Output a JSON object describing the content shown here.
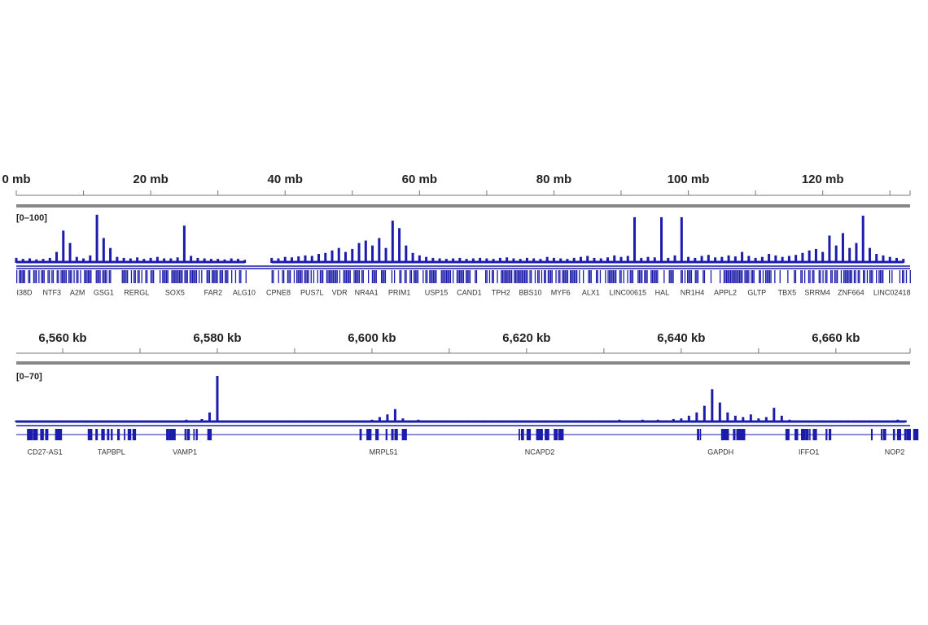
{
  "chart_data": [
    {
      "type": "genome-track",
      "xlim": [
        0,
        133
      ],
      "xticks": [
        {
          "value": 0,
          "label": "0 mb"
        },
        {
          "value": 20,
          "label": "20 mb"
        },
        {
          "value": 40,
          "label": "40 mb"
        },
        {
          "value": 60,
          "label": "60 mb"
        },
        {
          "value": 80,
          "label": "80 mb"
        },
        {
          "value": 100,
          "label": "100 mb"
        },
        {
          "value": 120,
          "label": "120 mb"
        }
      ],
      "minor_xticks": [
        10,
        30,
        50,
        70,
        90,
        110,
        130
      ],
      "range_label": "[0–100]",
      "ylim": [
        0,
        100
      ],
      "color": "#1c1cab",
      "series": [
        {
          "x": [
            0,
            1,
            2,
            3,
            4,
            5,
            6,
            7,
            8,
            9,
            10,
            11,
            12,
            13,
            14,
            15,
            16,
            17,
            18,
            19,
            20,
            21,
            22,
            23,
            24,
            25,
            26,
            27,
            28,
            29,
            30,
            31,
            32,
            33,
            34,
            35,
            36,
            37,
            38,
            39,
            40,
            41,
            42,
            43,
            44,
            45,
            46,
            47,
            48,
            49,
            50,
            51,
            52,
            53,
            54,
            55,
            56,
            57,
            58,
            59,
            60,
            61,
            62,
            63,
            64,
            65,
            66,
            67,
            68,
            69,
            70,
            71,
            72,
            73,
            74,
            75,
            76,
            77,
            78,
            79,
            80,
            81,
            82,
            83,
            84,
            85,
            86,
            87,
            88,
            89,
            90,
            91,
            92,
            93,
            94,
            95,
            96,
            97,
            98,
            99,
            100,
            101,
            102,
            103,
            104,
            105,
            106,
            107,
            108,
            109,
            110,
            111,
            112,
            113,
            114,
            115,
            116,
            117,
            118,
            119,
            120,
            121,
            122,
            123,
            124,
            125,
            126,
            127,
            128,
            129,
            130,
            131,
            132
          ],
          "values": [
            10,
            8,
            9,
            7,
            8,
            10,
            22,
            65,
            40,
            12,
            9,
            15,
            97,
            50,
            30,
            12,
            10,
            9,
            11,
            8,
            10,
            12,
            9,
            9,
            11,
            75,
            14,
            10,
            9,
            8,
            8,
            7,
            9,
            8,
            6,
            null,
            null,
            null,
            10,
            9,
            12,
            11,
            13,
            15,
            14,
            18,
            20,
            25,
            30,
            22,
            28,
            40,
            45,
            35,
            50,
            30,
            85,
            70,
            35,
            20,
            15,
            12,
            10,
            9,
            8,
            9,
            10,
            8,
            9,
            10,
            9,
            8,
            10,
            11,
            9,
            8,
            10,
            9,
            8,
            12,
            10,
            9,
            8,
            10,
            12,
            14,
            10,
            9,
            11,
            15,
            12,
            14,
            92,
            10,
            12,
            11,
            92,
            10,
            15,
            92,
            12,
            10,
            14,
            16,
            11,
            12,
            15,
            13,
            22,
            14,
            10,
            12,
            18,
            15,
            12,
            14,
            16,
            20,
            25,
            28,
            22,
            55,
            35,
            60,
            30,
            40,
            95,
            30,
            18,
            15,
            12,
            10,
            8
          ]
        }
      ],
      "genes": [
        {
          "name": "I38D",
          "x": 1.1
        },
        {
          "name": "NTF3",
          "x": 5.3
        },
        {
          "name": "A2M",
          "x": 9.1
        },
        {
          "name": "GSG1",
          "x": 13
        },
        {
          "name": "RERGL",
          "x": 17.9
        },
        {
          "name": "SOX5",
          "x": 23.6
        },
        {
          "name": "FAR2",
          "x": 29.3
        },
        {
          "name": "ALG10",
          "x": 33.9
        },
        {
          "name": "CPNE8",
          "x": 39
        },
        {
          "name": "PUS7L",
          "x": 44
        },
        {
          "name": "VDR",
          "x": 48.1
        },
        {
          "name": "NR4A1",
          "x": 52.1
        },
        {
          "name": "PRIM1",
          "x": 57
        },
        {
          "name": "USP15",
          "x": 62.5
        },
        {
          "name": "CAND1",
          "x": 67.4
        },
        {
          "name": "TPH2",
          "x": 72.1
        },
        {
          "name": "BBS10",
          "x": 76.5
        },
        {
          "name": "MYF6",
          "x": 81
        },
        {
          "name": "ALX1",
          "x": 85.5
        },
        {
          "name": "LINC00615",
          "x": 91
        },
        {
          "name": "HAL",
          "x": 96.1
        },
        {
          "name": "NR1H4",
          "x": 100.6
        },
        {
          "name": "APPL2",
          "x": 105.5
        },
        {
          "name": "GLTP",
          "x": 110.2
        },
        {
          "name": "TBX5",
          "x": 114.7
        },
        {
          "name": "SRRM4",
          "x": 119.2
        },
        {
          "name": "ZNF664",
          "x": 124.2
        },
        {
          "name": "LINC02418",
          "x": 130.3
        }
      ]
    },
    {
      "type": "genome-track",
      "xlim": [
        6554,
        6669.6
      ],
      "xticks": [
        {
          "value": 6560,
          "label": "6,560 kb"
        },
        {
          "value": 6580,
          "label": "6,580 kb"
        },
        {
          "value": 6600,
          "label": "6,600 kb"
        },
        {
          "value": 6620,
          "label": "6,620 kb"
        },
        {
          "value": 6640,
          "label": "6,640 kb"
        },
        {
          "value": 6660,
          "label": "6,660 kb"
        }
      ],
      "minor_xticks": [
        6570,
        6590,
        6610,
        6630,
        6650
      ],
      "range_label": "[0–70]",
      "ylim": [
        0,
        70
      ],
      "color": "#1c1cab",
      "series": [
        {
          "x": [
            6554,
            6555,
            6556,
            6557,
            6558,
            6559,
            6560,
            6561,
            6562,
            6563,
            6564,
            6565,
            6566,
            6567,
            6568,
            6569,
            6570,
            6571,
            6572,
            6573,
            6574,
            6575,
            6576,
            6577,
            6578,
            6579,
            6580,
            6581,
            6582,
            6583,
            6584,
            6585,
            6586,
            6587,
            6588,
            6589,
            6590,
            6591,
            6592,
            6593,
            6594,
            6595,
            6596,
            6597,
            6598,
            6599,
            6600,
            6601,
            6602,
            6603,
            6604,
            6605,
            6606,
            6607,
            6608,
            6609,
            6610,
            6611,
            6612,
            6613,
            6614,
            6615,
            6616,
            6617,
            6618,
            6619,
            6620,
            6621,
            6622,
            6623,
            6624,
            6625,
            6626,
            6627,
            6628,
            6629,
            6630,
            6631,
            6632,
            6633,
            6634,
            6635,
            6636,
            6637,
            6638,
            6639,
            6640,
            6641,
            6642,
            6643,
            6644,
            6645,
            6646,
            6647,
            6648,
            6649,
            6650,
            6651,
            6652,
            6653,
            6654,
            6655,
            6656,
            6657,
            6658,
            6659,
            6660,
            6661,
            6662,
            6663,
            6664,
            6665,
            6666,
            6667,
            6668,
            6669
          ],
          "values": [
            3,
            2,
            2,
            3,
            2,
            2,
            3,
            2,
            2,
            3,
            2,
            3,
            2,
            2,
            3,
            2,
            3,
            2,
            2,
            3,
            2,
            3,
            4,
            3,
            5,
            15,
            70,
            3,
            2,
            2,
            3,
            2,
            2,
            3,
            2,
            2,
            3,
            2,
            3,
            2,
            2,
            3,
            2,
            2,
            3,
            2,
            4,
            8,
            12,
            20,
            6,
            3,
            4,
            3,
            2,
            3,
            2,
            3,
            2,
            2,
            3,
            2,
            2,
            3,
            2,
            2,
            3,
            2,
            3,
            2,
            2,
            3,
            2,
            2,
            3,
            2,
            3,
            3,
            4,
            3,
            3,
            4,
            3,
            4,
            3,
            5,
            6,
            10,
            15,
            25,
            50,
            30,
            15,
            10,
            8,
            12,
            6,
            8,
            22,
            10,
            4,
            3,
            3,
            2,
            3,
            2,
            3,
            2,
            2,
            3,
            2,
            3,
            2,
            2,
            4,
            3
          ]
        }
      ],
      "genes": [
        {
          "name": "CD27-AS1",
          "x": 6557.7
        },
        {
          "name": "TAPBPL",
          "x": 6566.3
        },
        {
          "name": "VAMP1",
          "x": 6575.8
        },
        {
          "name": "MRPL51",
          "x": 6601.5
        },
        {
          "name": "NCAPD2",
          "x": 6621.7
        },
        {
          "name": "GAPDH",
          "x": 6645.1
        },
        {
          "name": "IFFO1",
          "x": 6656.5
        },
        {
          "name": "NOP2",
          "x": 6667.6
        }
      ]
    }
  ]
}
